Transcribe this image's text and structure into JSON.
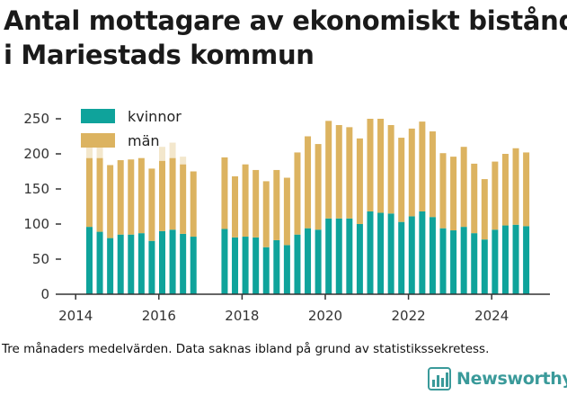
{
  "title_lines": [
    "Antal mottagare av ekonomiskt bistånd",
    "i Mariestads kommun"
  ],
  "footnote": "Tre månaders medelvärden. Data saknas ibland på grund av statistikssekretess.",
  "brand": {
    "name": "Newsworthy",
    "icon": "newsworthy-logo-icon",
    "color": "#3a9a9a"
  },
  "colors": {
    "kvinnor": "#0fa39b",
    "man": "#dcb360",
    "gap_cap": "#f3e7cc",
    "axis": "#333333"
  },
  "chart_data": {
    "type": "bar",
    "stacked": true,
    "title": "Antal mottagare av ekonomiskt bistånd i Mariestads kommun",
    "xlabel": "",
    "ylabel": "",
    "ylim": [
      0,
      250
    ],
    "yticks": [
      0,
      50,
      100,
      150,
      200,
      250
    ],
    "xlim": [
      2013.65,
      2025.4
    ],
    "xticks": [
      2014,
      2016,
      2018,
      2020,
      2022,
      2024
    ],
    "grid": false,
    "legend": {
      "position": "top-left",
      "entries": [
        "kvinnor",
        "män"
      ]
    },
    "x": [
      2014.33,
      2014.58,
      2014.83,
      2015.08,
      2015.33,
      2015.58,
      2015.83,
      2016.08,
      2016.33,
      2016.58,
      2016.83,
      2017.58,
      2017.83,
      2018.08,
      2018.33,
      2018.58,
      2018.83,
      2019.08,
      2019.33,
      2019.58,
      2019.83,
      2020.08,
      2020.33,
      2020.58,
      2020.83,
      2021.08,
      2021.33,
      2021.58,
      2021.83,
      2022.08,
      2022.33,
      2022.58,
      2022.83,
      2023.08,
      2023.33,
      2023.58,
      2023.83,
      2024.08,
      2024.33,
      2024.58,
      2024.83
    ],
    "series": [
      {
        "name": "kvinnor",
        "values": [
          96,
          89,
          80,
          85,
          85,
          87,
          76,
          90,
          92,
          86,
          82,
          93,
          81,
          82,
          81,
          67,
          77,
          70,
          85,
          94,
          92,
          108,
          108,
          108,
          100,
          118,
          116,
          115,
          103,
          111,
          118,
          110,
          94,
          91,
          96,
          87,
          78,
          92,
          98,
          99,
          97
        ]
      },
      {
        "name": "män",
        "values": [
          98,
          105,
          104,
          106,
          107,
          107,
          103,
          100,
          102,
          99,
          93,
          102,
          87,
          103,
          96,
          94,
          100,
          96,
          117,
          131,
          122,
          139,
          133,
          130,
          122,
          132,
          134,
          126,
          120,
          125,
          128,
          122,
          107,
          105,
          114,
          99,
          86,
          97,
          102,
          109,
          105
        ]
      }
    ],
    "incomplete_totals": {
      "x": [
        2014.33,
        2014.58,
        2016.08,
        2016.33,
        2016.58
      ],
      "values": [
        214,
        214,
        210,
        216,
        196
      ]
    }
  }
}
